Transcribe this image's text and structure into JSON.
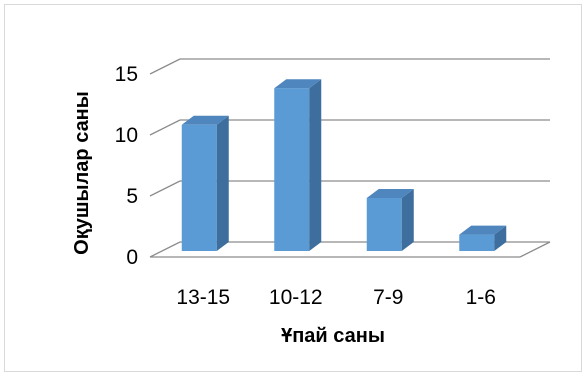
{
  "chart_data": {
    "type": "bar",
    "categories": [
      "13-15",
      "10-12",
      "7-9",
      "1-6"
    ],
    "values": [
      11,
      14,
      5,
      2
    ],
    "title": "",
    "xlabel": "Ұпай саны",
    "ylabel": "Оқушылар саны",
    "ylim": [
      0,
      15
    ],
    "yticks": [
      "0",
      "5",
      "10",
      "15"
    ],
    "grid": true,
    "legend": "none",
    "colors": {
      "bar_front": "#5b9bd5",
      "bar_side": "#3d6e9e",
      "bar_top": "#4f86bd",
      "grid": "#8c8c8c",
      "frame": "#d9d9d9"
    }
  }
}
